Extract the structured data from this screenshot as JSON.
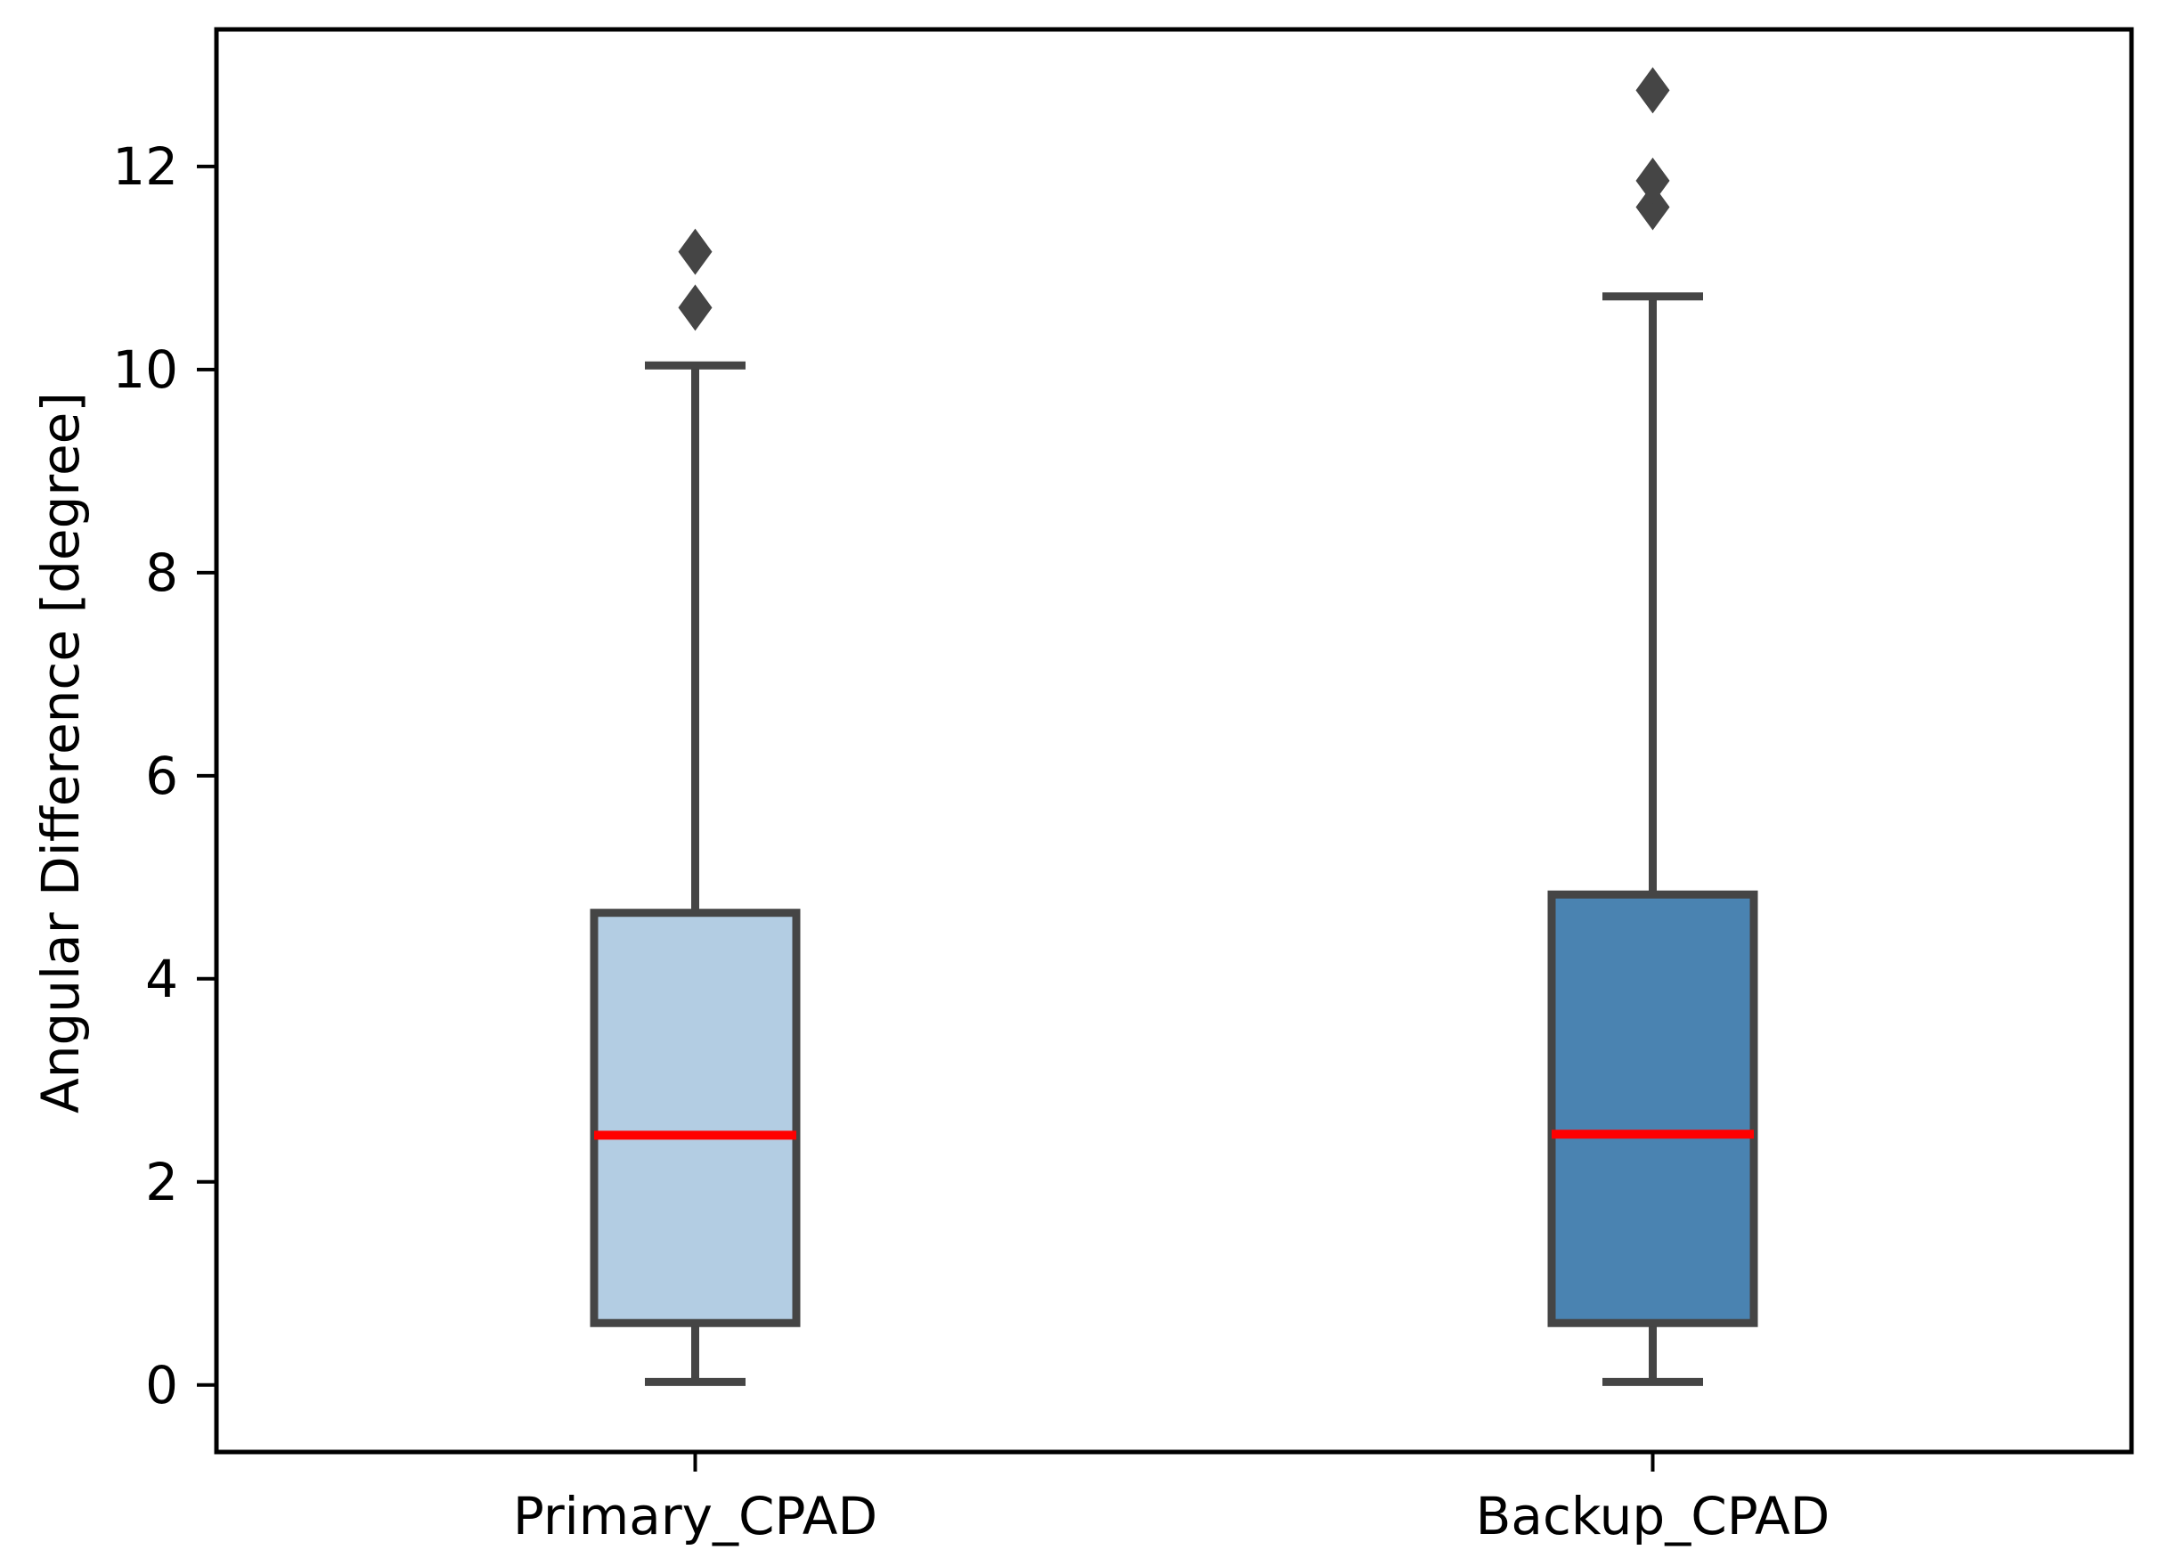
{
  "chart_data": {
    "type": "boxplot",
    "title": "",
    "xlabel": "",
    "ylabel": "Angular Difference [degree]",
    "categories": [
      "Primary_CPAD",
      "Backup_CPAD"
    ],
    "series": [
      {
        "name": "Primary_CPAD",
        "min": 0.03,
        "q1": 0.61,
        "median": 2.46,
        "q3": 4.65,
        "max": 10.04,
        "outliers": [
          10.61,
          11.16
        ],
        "fill_color": "#b3cde3"
      },
      {
        "name": "Backup_CPAD",
        "min": 0.03,
        "q1": 0.61,
        "median": 2.47,
        "q3": 4.83,
        "max": 10.72,
        "outliers": [
          11.6,
          11.86,
          12.75
        ],
        "fill_color": "#4a83b1"
      }
    ],
    "yticks": [
      0,
      2,
      4,
      6,
      8,
      10,
      12
    ],
    "ylim": [
      -0.66,
      13.35
    ],
    "grid": false,
    "legend": false,
    "colors": {
      "median_line": "#ff0000",
      "box_line": "#454545",
      "whisker_line": "#454545",
      "outlier_marker": "#454545",
      "spine": "#000000",
      "text": "#000000",
      "background": "#ffffff"
    }
  }
}
